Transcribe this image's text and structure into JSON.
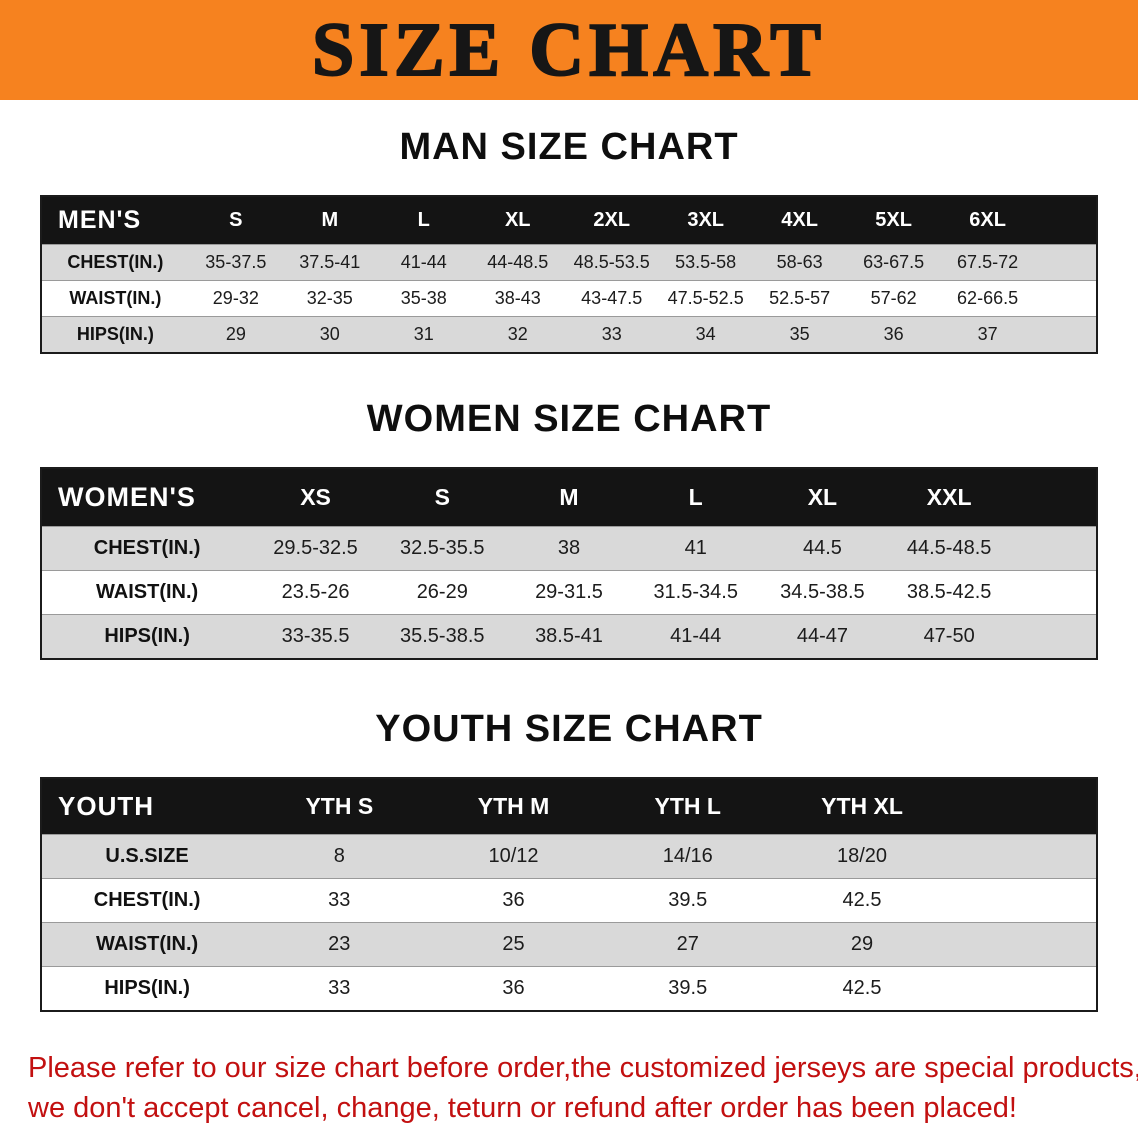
{
  "banner": {
    "title": "SIZE CHART"
  },
  "colors": {
    "banner_background": "#f6821f",
    "table_header_background": "#141414",
    "row_stripe": "#d9d9d9",
    "disclaimer_text": "#c21010"
  },
  "sections": [
    {
      "id": "men",
      "heading": "MAN SIZE CHART",
      "corner_label": "MEN'S",
      "columns": [
        "S",
        "M",
        "L",
        "XL",
        "2XL",
        "3XL",
        "4XL",
        "5XL",
        "6XL"
      ],
      "rows": [
        {
          "label": "CHEST(IN.)",
          "values": [
            "35-37.5",
            "37.5-41",
            "41-44",
            "44-48.5",
            "48.5-53.5",
            "53.5-58",
            "58-63",
            "63-67.5",
            "67.5-72"
          ]
        },
        {
          "label": "WAIST(IN.)",
          "values": [
            "29-32",
            "32-35",
            "35-38",
            "38-43",
            "43-47.5",
            "47.5-52.5",
            "52.5-57",
            "57-62",
            "62-66.5"
          ]
        },
        {
          "label": "HIPS(IN.)",
          "values": [
            "29",
            "30",
            "31",
            "32",
            "33",
            "34",
            "35",
            "36",
            "37"
          ]
        }
      ]
    },
    {
      "id": "women",
      "heading": "WOMEN SIZE CHART",
      "corner_label": "WOMEN'S",
      "columns": [
        "XS",
        "S",
        "M",
        "L",
        "XL",
        "XXL"
      ],
      "rows": [
        {
          "label": "CHEST(IN.)",
          "values": [
            "29.5-32.5",
            "32.5-35.5",
            "38",
            "41",
            "44.5",
            "44.5-48.5"
          ]
        },
        {
          "label": "WAIST(IN.)",
          "values": [
            "23.5-26",
            "26-29",
            "29-31.5",
            "31.5-34.5",
            "34.5-38.5",
            "38.5-42.5"
          ]
        },
        {
          "label": "HIPS(IN.)",
          "values": [
            "33-35.5",
            "35.5-38.5",
            "38.5-41",
            "41-44",
            "44-47",
            "47-50"
          ]
        }
      ]
    },
    {
      "id": "youth",
      "heading": "YOUTH SIZE CHART",
      "corner_label": "YOUTH",
      "columns": [
        "YTH S",
        "YTH M",
        "YTH L",
        "YTH XL"
      ],
      "rows": [
        {
          "label": "U.S.SIZE",
          "values": [
            "8",
            "10/12",
            "14/16",
            "18/20"
          ]
        },
        {
          "label": "CHEST(IN.)",
          "values": [
            "33",
            "36",
            "39.5",
            "42.5"
          ]
        },
        {
          "label": "WAIST(IN.)",
          "values": [
            "23",
            "25",
            "27",
            "29"
          ]
        },
        {
          "label": "HIPS(IN.)",
          "values": [
            "33",
            "36",
            "39.5",
            "42.5"
          ]
        }
      ]
    }
  ],
  "disclaimer": {
    "line1": "Please refer to our size chart before order,the customized jerseys are special products,",
    "line2": "we don't accept cancel, change, teturn or refund after order has been placed!"
  }
}
